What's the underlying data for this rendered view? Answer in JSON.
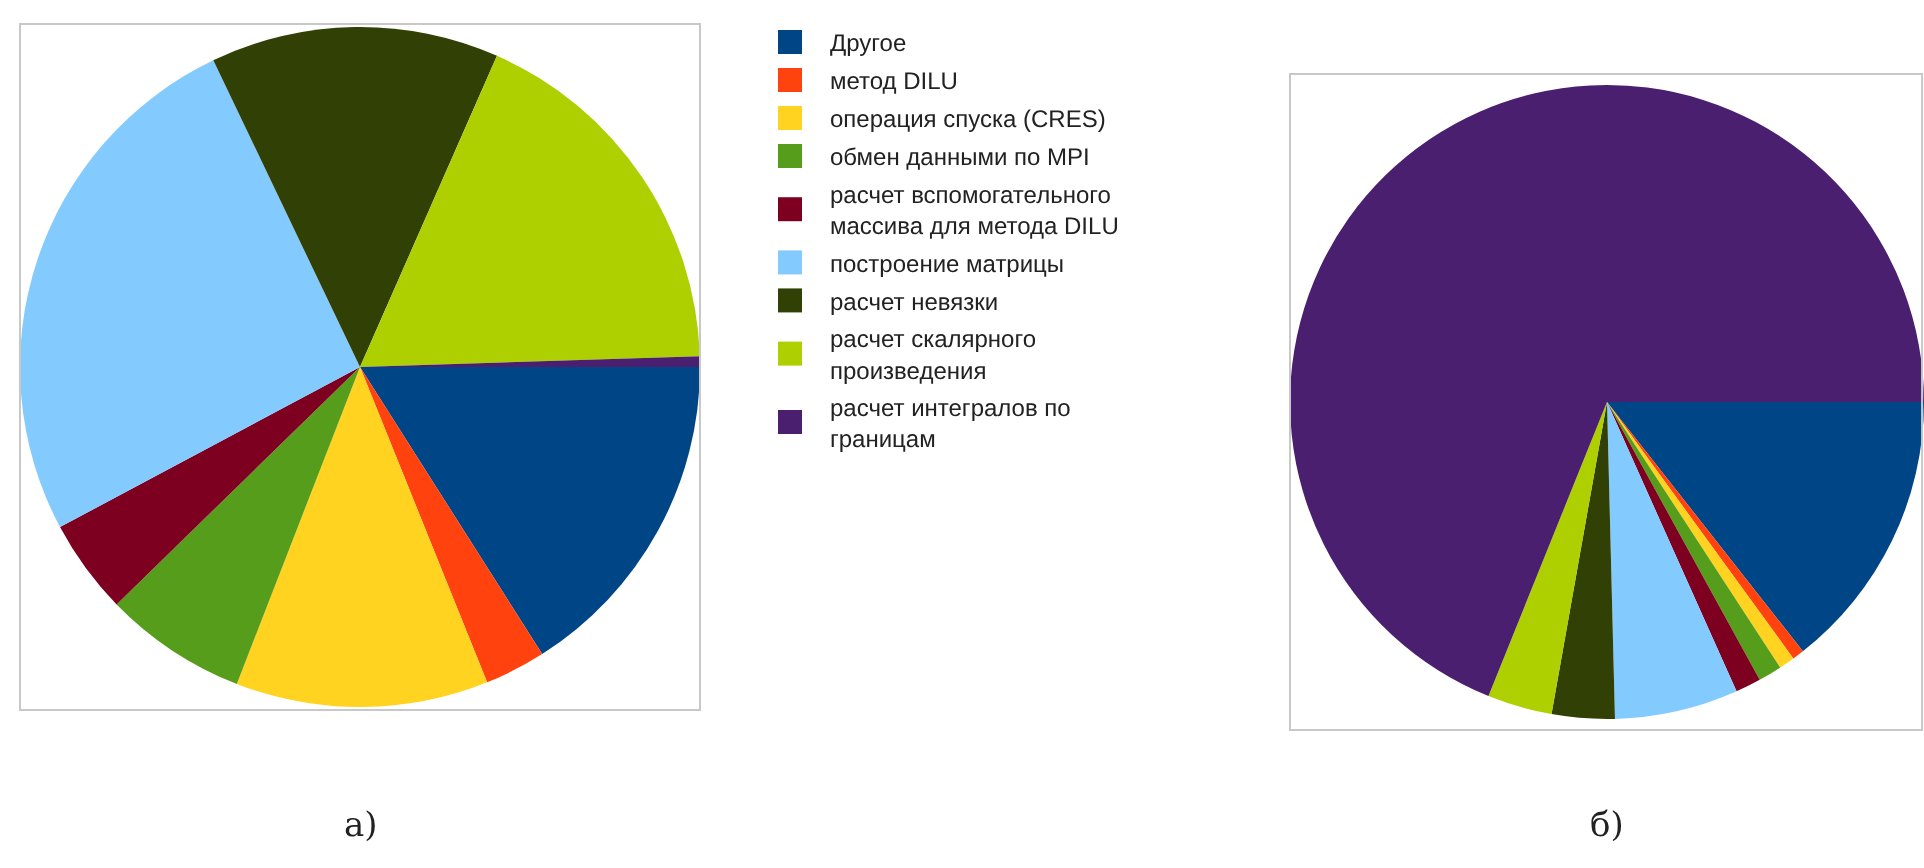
{
  "chart_data": [
    {
      "type": "pie",
      "categories": [
        "Другое",
        "метод DILU",
        "операция спуска (CRES)",
        "обмен данными по MPI",
        "расчет вспомогательного массива для метода DILU",
        "построение матрицы",
        "расчет невязки",
        "расчет скалярного произведения",
        "расчет интегралов по границам"
      ],
      "values": [
        16.0,
        2.9,
        12.0,
        6.8,
        4.5,
        25.7,
        13.7,
        17.9,
        0.5
      ],
      "colors": [
        "#004586",
        "#ff420e",
        "#ffd320",
        "#579d1c",
        "#7e0021",
        "#83caff",
        "#314004",
        "#aecf00",
        "#4b1f6f"
      ],
      "annotations": [
        "а)"
      ],
      "legend": "right"
    },
    {
      "type": "pie",
      "categories": [
        null,
        null,
        null,
        null,
        null,
        null,
        null,
        null,
        null
      ],
      "values": [
        14.4,
        0.6,
        0.8,
        1.2,
        1.3,
        6.3,
        3.2,
        3.3,
        68.9
      ],
      "colors": [
        "#004586",
        "#ff420e",
        "#ffd320",
        "#579d1c",
        "#7e0021",
        "#83caff",
        "#314004",
        "#aecf00",
        "#4b1f6f"
      ],
      "annotations": [
        "б)"
      ],
      "legend": false
    }
  ]
}
